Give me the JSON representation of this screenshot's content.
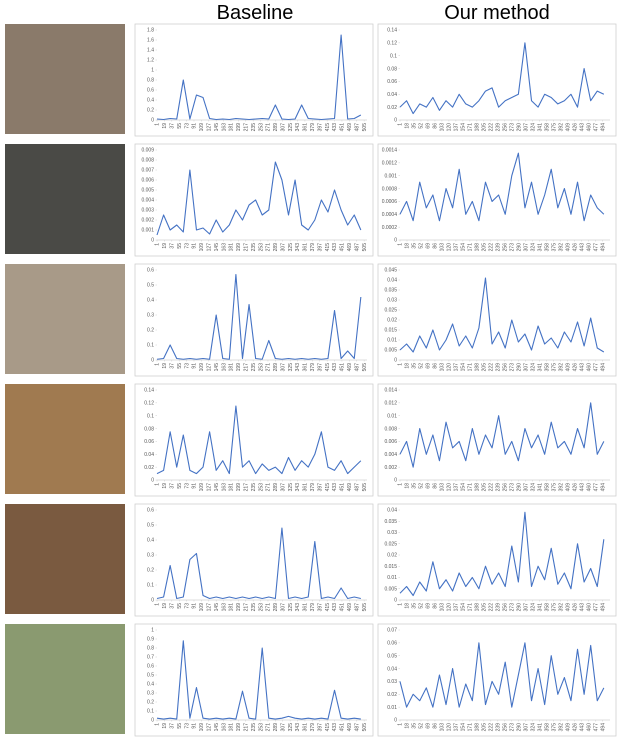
{
  "headers": {
    "baseline": "Baseline",
    "ours": "Our method"
  },
  "chart_data": [
    {
      "type": "line",
      "color": "#4472c4",
      "xlim": [
        1,
        512
      ],
      "ylim": [
        0,
        1.8
      ],
      "yticks": [
        0,
        0.2,
        0.4,
        0.6,
        0.8,
        1,
        1.2,
        1.4,
        1.6,
        1.8
      ],
      "xticks": [
        1,
        19,
        37,
        55,
        73,
        91,
        109,
        127,
        145,
        163,
        181,
        199,
        217,
        235,
        253,
        271,
        289,
        307,
        325,
        343,
        361,
        379,
        397,
        415,
        433,
        451,
        469,
        487,
        505
      ],
      "x": [
        1,
        17,
        33,
        49,
        65,
        81,
        97,
        113,
        129,
        145,
        161,
        177,
        193,
        209,
        225,
        241,
        257,
        273,
        289,
        305,
        321,
        337,
        353,
        369,
        385,
        401,
        417,
        433,
        449,
        465,
        481,
        497
      ],
      "values": [
        0.02,
        0.01,
        0.03,
        0.02,
        0.8,
        0.02,
        0.5,
        0.45,
        0.03,
        0.01,
        0.02,
        0.01,
        0.03,
        0.02,
        0.01,
        0.02,
        0.03,
        0.02,
        0.3,
        0.02,
        0.01,
        0.02,
        0.3,
        0.03,
        0.02,
        0.01,
        0.02,
        0.03,
        1.7,
        0.02,
        0.03,
        0.1
      ]
    },
    {
      "type": "line",
      "color": "#4472c4",
      "xlim": [
        1,
        512
      ],
      "ylim": [
        0,
        0.14
      ],
      "yticks": [
        0,
        0.02,
        0.04,
        0.06,
        0.08,
        0.1,
        0.12,
        0.14
      ],
      "xticks": [
        1,
        18,
        35,
        52,
        69,
        86,
        103,
        120,
        137,
        154,
        171,
        188,
        205,
        222,
        239,
        256,
        273,
        290,
        307,
        324,
        341,
        358,
        375,
        392,
        409,
        426,
        443,
        460,
        477,
        494
      ],
      "x": [
        1,
        17,
        33,
        49,
        65,
        81,
        97,
        113,
        129,
        145,
        161,
        177,
        193,
        209,
        225,
        241,
        257,
        273,
        289,
        305,
        321,
        337,
        353,
        369,
        385,
        401,
        417,
        433,
        449,
        465,
        481,
        497
      ],
      "values": [
        0.02,
        0.03,
        0.01,
        0.025,
        0.02,
        0.035,
        0.015,
        0.03,
        0.02,
        0.04,
        0.025,
        0.02,
        0.03,
        0.045,
        0.05,
        0.02,
        0.03,
        0.035,
        0.04,
        0.12,
        0.03,
        0.02,
        0.04,
        0.035,
        0.025,
        0.03,
        0.04,
        0.02,
        0.08,
        0.03,
        0.045,
        0.04
      ]
    },
    {
      "type": "line",
      "color": "#4472c4",
      "xlim": [
        1,
        512
      ],
      "ylim": [
        0,
        0.009
      ],
      "yticks": [
        0,
        0.001,
        0.002,
        0.003,
        0.004,
        0.005,
        0.006,
        0.007,
        0.008,
        0.009
      ],
      "xticks": [
        1,
        19,
        37,
        55,
        73,
        91,
        109,
        127,
        145,
        163,
        181,
        199,
        217,
        235,
        253,
        271,
        289,
        307,
        325,
        343,
        361,
        379,
        397,
        415,
        433,
        451,
        469,
        487,
        505
      ],
      "x": [
        1,
        17,
        33,
        49,
        65,
        81,
        97,
        113,
        129,
        145,
        161,
        177,
        193,
        209,
        225,
        241,
        257,
        273,
        289,
        305,
        321,
        337,
        353,
        369,
        385,
        401,
        417,
        433,
        449,
        465,
        481,
        497
      ],
      "values": [
        0.0005,
        0.0025,
        0.001,
        0.0015,
        0.0008,
        0.007,
        0.001,
        0.0012,
        0.0006,
        0.002,
        0.0008,
        0.0015,
        0.003,
        0.002,
        0.0035,
        0.004,
        0.0025,
        0.003,
        0.0078,
        0.006,
        0.0025,
        0.006,
        0.0015,
        0.001,
        0.002,
        0.004,
        0.0028,
        0.005,
        0.003,
        0.0015,
        0.0025,
        0.001
      ]
    },
    {
      "type": "line",
      "color": "#4472c4",
      "xlim": [
        1,
        512
      ],
      "ylim": [
        0,
        0.0014
      ],
      "yticks": [
        0,
        0.0002,
        0.0004,
        0.0006,
        0.0008,
        0.001,
        0.0012,
        0.0014
      ],
      "xticks": [
        1,
        18,
        35,
        52,
        69,
        86,
        103,
        120,
        137,
        154,
        171,
        188,
        205,
        222,
        239,
        256,
        273,
        290,
        307,
        324,
        341,
        358,
        375,
        392,
        409,
        426,
        443,
        460,
        477,
        494
      ],
      "x": [
        1,
        17,
        33,
        49,
        65,
        81,
        97,
        113,
        129,
        145,
        161,
        177,
        193,
        209,
        225,
        241,
        257,
        273,
        289,
        305,
        321,
        337,
        353,
        369,
        385,
        401,
        417,
        433,
        449,
        465,
        481,
        497
      ],
      "values": [
        0.0004,
        0.0006,
        0.0003,
        0.0009,
        0.0005,
        0.0007,
        0.0003,
        0.0008,
        0.0005,
        0.0011,
        0.0004,
        0.0006,
        0.0003,
        0.0009,
        0.0006,
        0.0007,
        0.0004,
        0.001,
        0.00135,
        0.0005,
        0.0009,
        0.0004,
        0.0007,
        0.0011,
        0.0005,
        0.0008,
        0.0004,
        0.0009,
        0.0003,
        0.0007,
        0.0005,
        0.0004
      ]
    },
    {
      "type": "line",
      "color": "#4472c4",
      "xlim": [
        1,
        512
      ],
      "ylim": [
        0,
        0.6
      ],
      "yticks": [
        0,
        0.1,
        0.2,
        0.3,
        0.4,
        0.5,
        0.6
      ],
      "xticks": [
        1,
        19,
        37,
        55,
        73,
        91,
        109,
        127,
        145,
        163,
        181,
        199,
        217,
        235,
        253,
        271,
        289,
        307,
        325,
        343,
        361,
        379,
        397,
        415,
        433,
        451,
        469,
        487,
        505
      ],
      "x": [
        1,
        17,
        33,
        49,
        65,
        81,
        97,
        113,
        129,
        145,
        161,
        177,
        193,
        209,
        225,
        241,
        257,
        273,
        289,
        305,
        321,
        337,
        353,
        369,
        385,
        401,
        417,
        433,
        449,
        465,
        481,
        497
      ],
      "values": [
        0.005,
        0.01,
        0.1,
        0.01,
        0.005,
        0.01,
        0.005,
        0.01,
        0.005,
        0.3,
        0.01,
        0.005,
        0.57,
        0.01,
        0.37,
        0.01,
        0.005,
        0.13,
        0.01,
        0.005,
        0.01,
        0.005,
        0.01,
        0.005,
        0.01,
        0.005,
        0.01,
        0.33,
        0.01,
        0.06,
        0.01,
        0.42
      ]
    },
    {
      "type": "line",
      "color": "#4472c4",
      "xlim": [
        1,
        512
      ],
      "ylim": [
        0,
        0.045
      ],
      "yticks": [
        0,
        0.005,
        0.01,
        0.015,
        0.02,
        0.025,
        0.03,
        0.035,
        0.04,
        0.045
      ],
      "xticks": [
        1,
        18,
        35,
        52,
        69,
        86,
        103,
        120,
        137,
        154,
        171,
        188,
        205,
        222,
        239,
        256,
        273,
        290,
        307,
        324,
        341,
        358,
        375,
        392,
        409,
        426,
        443,
        460,
        477,
        494
      ],
      "x": [
        1,
        17,
        33,
        49,
        65,
        81,
        97,
        113,
        129,
        145,
        161,
        177,
        193,
        209,
        225,
        241,
        257,
        273,
        289,
        305,
        321,
        337,
        353,
        369,
        385,
        401,
        417,
        433,
        449,
        465,
        481,
        497
      ],
      "values": [
        0.005,
        0.008,
        0.004,
        0.012,
        0.006,
        0.015,
        0.005,
        0.01,
        0.018,
        0.007,
        0.012,
        0.006,
        0.016,
        0.041,
        0.008,
        0.014,
        0.006,
        0.02,
        0.009,
        0.013,
        0.005,
        0.017,
        0.008,
        0.011,
        0.006,
        0.014,
        0.009,
        0.019,
        0.007,
        0.021,
        0.006,
        0.004
      ]
    },
    {
      "type": "line",
      "color": "#4472c4",
      "xlim": [
        1,
        512
      ],
      "ylim": [
        0,
        0.14
      ],
      "yticks": [
        0,
        0.02,
        0.04,
        0.06,
        0.08,
        0.1,
        0.12,
        0.14
      ],
      "xticks": [
        1,
        19,
        37,
        55,
        73,
        91,
        109,
        127,
        145,
        163,
        181,
        199,
        217,
        235,
        253,
        271,
        289,
        307,
        325,
        343,
        361,
        379,
        397,
        415,
        433,
        451,
        469,
        487,
        505
      ],
      "x": [
        1,
        17,
        33,
        49,
        65,
        81,
        97,
        113,
        129,
        145,
        161,
        177,
        193,
        209,
        225,
        241,
        257,
        273,
        289,
        305,
        321,
        337,
        353,
        369,
        385,
        401,
        417,
        433,
        449,
        465,
        481,
        497
      ],
      "values": [
        0.01,
        0.015,
        0.075,
        0.02,
        0.07,
        0.015,
        0.01,
        0.02,
        0.075,
        0.015,
        0.03,
        0.01,
        0.115,
        0.02,
        0.03,
        0.01,
        0.025,
        0.015,
        0.02,
        0.01,
        0.035,
        0.015,
        0.03,
        0.02,
        0.04,
        0.075,
        0.02,
        0.015,
        0.03,
        0.01,
        0.02,
        0.03
      ]
    },
    {
      "type": "line",
      "color": "#4472c4",
      "xlim": [
        1,
        512
      ],
      "ylim": [
        0,
        0.014
      ],
      "yticks": [
        0,
        0.002,
        0.004,
        0.006,
        0.008,
        0.01,
        0.012,
        0.014
      ],
      "xticks": [
        1,
        18,
        35,
        52,
        69,
        86,
        103,
        120,
        137,
        154,
        171,
        188,
        205,
        222,
        239,
        256,
        273,
        290,
        307,
        324,
        341,
        358,
        375,
        392,
        409,
        426,
        443,
        460,
        477,
        494
      ],
      "x": [
        1,
        17,
        33,
        49,
        65,
        81,
        97,
        113,
        129,
        145,
        161,
        177,
        193,
        209,
        225,
        241,
        257,
        273,
        289,
        305,
        321,
        337,
        353,
        369,
        385,
        401,
        417,
        433,
        449,
        465,
        481,
        497
      ],
      "values": [
        0.004,
        0.006,
        0.002,
        0.008,
        0.004,
        0.007,
        0.003,
        0.009,
        0.005,
        0.006,
        0.003,
        0.008,
        0.004,
        0.007,
        0.005,
        0.01,
        0.004,
        0.006,
        0.003,
        0.008,
        0.005,
        0.007,
        0.004,
        0.009,
        0.005,
        0.006,
        0.004,
        0.008,
        0.005,
        0.012,
        0.004,
        0.006
      ]
    },
    {
      "type": "line",
      "color": "#4472c4",
      "xlim": [
        1,
        512
      ],
      "ylim": [
        0,
        0.6
      ],
      "yticks": [
        0,
        0.1,
        0.2,
        0.3,
        0.4,
        0.5,
        0.6
      ],
      "xticks": [
        1,
        19,
        37,
        55,
        73,
        91,
        109,
        127,
        145,
        163,
        181,
        199,
        217,
        235,
        253,
        271,
        289,
        307,
        325,
        343,
        361,
        379,
        397,
        415,
        433,
        451,
        469,
        487,
        505
      ],
      "x": [
        1,
        17,
        33,
        49,
        65,
        81,
        97,
        113,
        129,
        145,
        161,
        177,
        193,
        209,
        225,
        241,
        257,
        273,
        289,
        305,
        321,
        337,
        353,
        369,
        385,
        401,
        417,
        433,
        449,
        465,
        481,
        497
      ],
      "values": [
        0.01,
        0.02,
        0.23,
        0.01,
        0.02,
        0.27,
        0.31,
        0.03,
        0.01,
        0.02,
        0.01,
        0.02,
        0.01,
        0.02,
        0.01,
        0.02,
        0.01,
        0.02,
        0.01,
        0.48,
        0.01,
        0.02,
        0.01,
        0.02,
        0.39,
        0.01,
        0.02,
        0.01,
        0.08,
        0.01,
        0.02,
        0.01
      ]
    },
    {
      "type": "line",
      "color": "#4472c4",
      "xlim": [
        1,
        512
      ],
      "ylim": [
        0,
        0.04
      ],
      "yticks": [
        0,
        0.005,
        0.01,
        0.015,
        0.02,
        0.025,
        0.03,
        0.035,
        0.04
      ],
      "xticks": [
        1,
        18,
        35,
        52,
        69,
        86,
        103,
        120,
        137,
        154,
        171,
        188,
        205,
        222,
        239,
        256,
        273,
        290,
        307,
        324,
        341,
        358,
        375,
        392,
        409,
        426,
        443,
        460,
        477,
        494
      ],
      "x": [
        1,
        17,
        33,
        49,
        65,
        81,
        97,
        113,
        129,
        145,
        161,
        177,
        193,
        209,
        225,
        241,
        257,
        273,
        289,
        305,
        321,
        337,
        353,
        369,
        385,
        401,
        417,
        433,
        449,
        465,
        481,
        497
      ],
      "values": [
        0.003,
        0.006,
        0.002,
        0.008,
        0.004,
        0.017,
        0.005,
        0.009,
        0.004,
        0.012,
        0.006,
        0.01,
        0.005,
        0.015,
        0.007,
        0.012,
        0.006,
        0.024,
        0.008,
        0.039,
        0.006,
        0.015,
        0.009,
        0.023,
        0.007,
        0.012,
        0.005,
        0.025,
        0.008,
        0.014,
        0.006,
        0.027
      ]
    },
    {
      "type": "line",
      "color": "#4472c4",
      "xlim": [
        1,
        512
      ],
      "ylim": [
        0,
        1
      ],
      "yticks": [
        0,
        0.1,
        0.2,
        0.3,
        0.4,
        0.5,
        0.6,
        0.7,
        0.8,
        0.9,
        1
      ],
      "xticks": [
        1,
        19,
        37,
        55,
        73,
        91,
        109,
        127,
        145,
        163,
        181,
        199,
        217,
        235,
        253,
        271,
        289,
        307,
        325,
        343,
        361,
        379,
        397,
        415,
        433,
        451,
        469,
        487,
        505
      ],
      "x": [
        1,
        17,
        33,
        49,
        65,
        81,
        97,
        113,
        129,
        145,
        161,
        177,
        193,
        209,
        225,
        241,
        257,
        273,
        289,
        305,
        321,
        337,
        353,
        369,
        385,
        401,
        417,
        433,
        449,
        465,
        481,
        497
      ],
      "values": [
        0.02,
        0.01,
        0.02,
        0.01,
        0.88,
        0.02,
        0.36,
        0.02,
        0.01,
        0.02,
        0.01,
        0.02,
        0.01,
        0.32,
        0.02,
        0.01,
        0.8,
        0.02,
        0.01,
        0.02,
        0.04,
        0.02,
        0.01,
        0.02,
        0.01,
        0.02,
        0.01,
        0.33,
        0.02,
        0.01,
        0.02,
        0.01
      ]
    },
    {
      "type": "line",
      "color": "#4472c4",
      "xlim": [
        1,
        512
      ],
      "ylim": [
        0,
        0.07
      ],
      "yticks": [
        0,
        0.01,
        0.02,
        0.03,
        0.04,
        0.05,
        0.06,
        0.07
      ],
      "xticks": [
        1,
        18,
        35,
        52,
        69,
        86,
        103,
        120,
        137,
        154,
        171,
        188,
        205,
        222,
        239,
        256,
        273,
        290,
        307,
        324,
        341,
        358,
        375,
        392,
        409,
        426,
        443,
        460,
        477,
        494
      ],
      "x": [
        1,
        17,
        33,
        49,
        65,
        81,
        97,
        113,
        129,
        145,
        161,
        177,
        193,
        209,
        225,
        241,
        257,
        273,
        289,
        305,
        321,
        337,
        353,
        369,
        385,
        401,
        417,
        433,
        449,
        465,
        481,
        497
      ],
      "values": [
        0.03,
        0.01,
        0.02,
        0.015,
        0.025,
        0.01,
        0.035,
        0.012,
        0.04,
        0.01,
        0.028,
        0.015,
        0.06,
        0.012,
        0.03,
        0.02,
        0.045,
        0.01,
        0.035,
        0.06,
        0.015,
        0.04,
        0.012,
        0.05,
        0.02,
        0.033,
        0.015,
        0.055,
        0.02,
        0.058,
        0.015,
        0.025
      ]
    }
  ]
}
